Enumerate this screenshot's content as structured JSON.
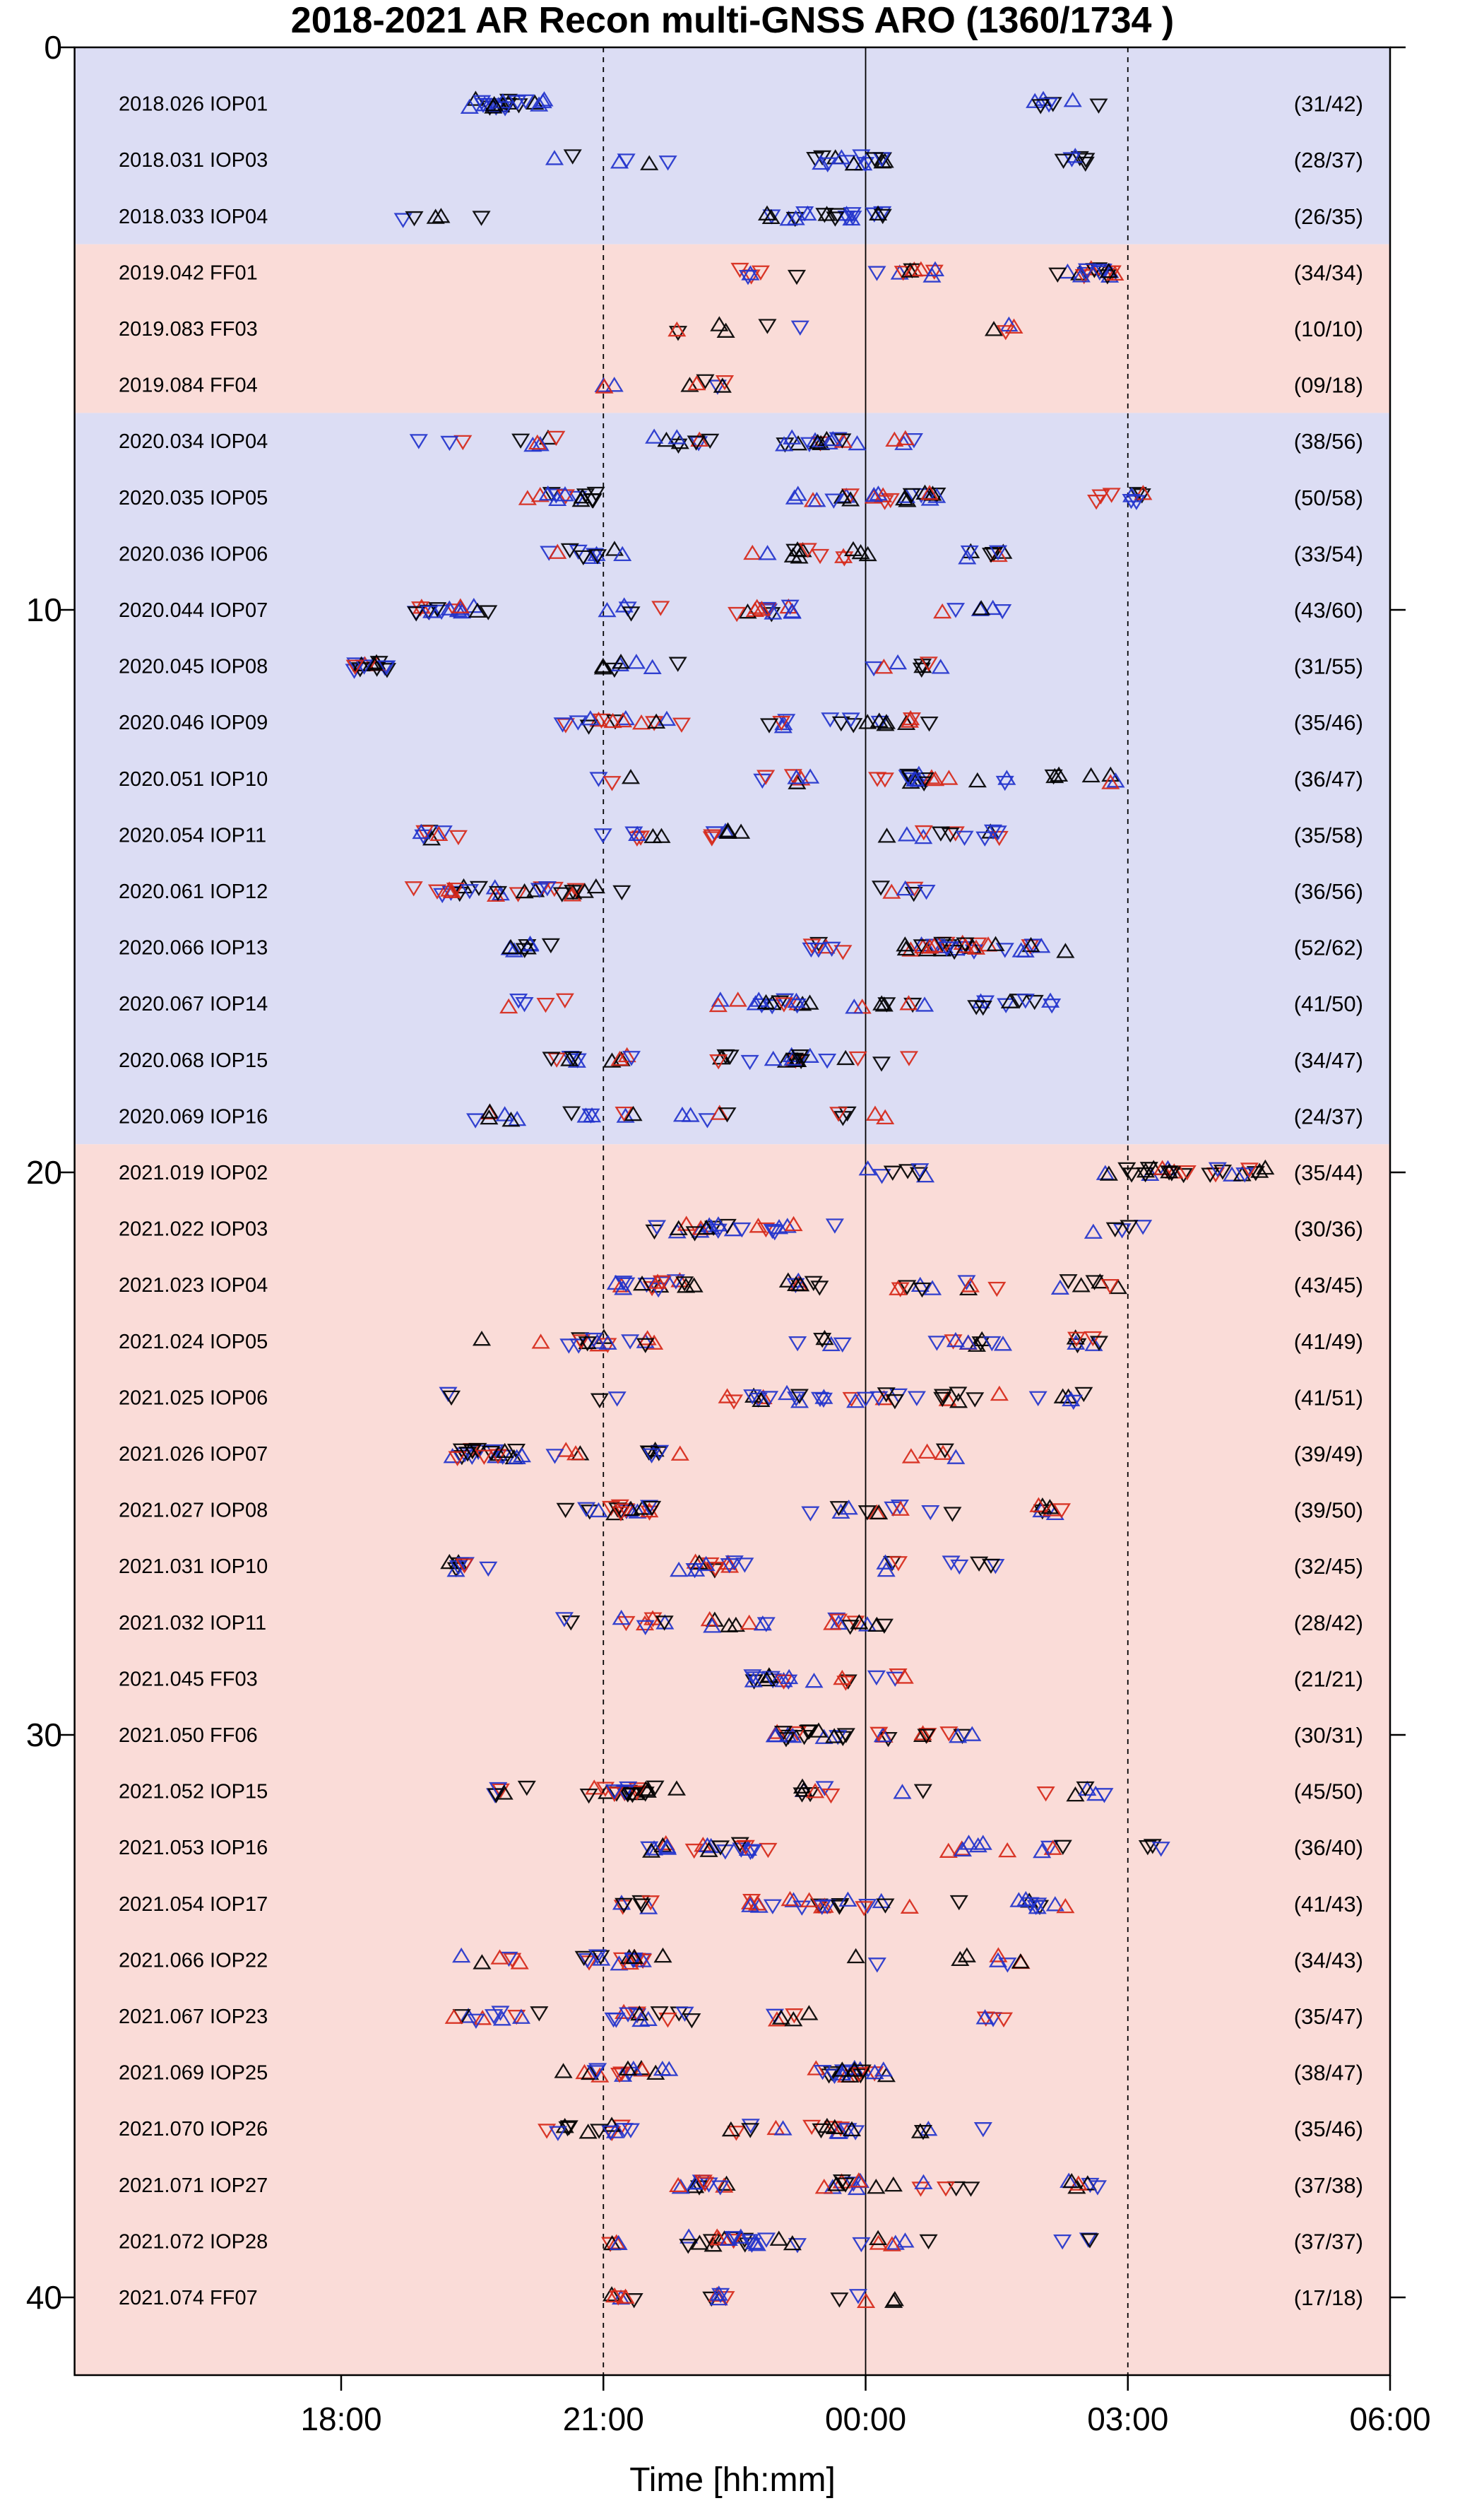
{
  "title": "2018-2021 AR Recon multi-GNSS ARO (1360/1734 )",
  "xlabel": "Time [hh:mm]",
  "chart_data": {
    "type": "scatter",
    "description": "Timeline of airborne GNSS radio occultation (ARO) soundings for each 2018-2021 AR Recon flight. Each row is one flight; open upward/downward triangles mark individual occultation events in time (colors = GNSS constellation: black, blue, red). Right-hand labels give (retrieved/total) occultation counts per flight. X axis spans 18:00 through 06:00 (next day) UTC; dashed guides at 21:00 and 03:00, solid line at 00:00.",
    "x_axis_range_hours": [
      14.9,
      30
    ],
    "x_ticks": [
      {
        "t": 18,
        "label": "18:00"
      },
      {
        "t": 21,
        "label": "21:00"
      },
      {
        "t": 24,
        "label": "00:00"
      },
      {
        "t": 27,
        "label": "03:00"
      },
      {
        "t": 30,
        "label": "06:00"
      }
    ],
    "y_ticks": [
      0,
      10,
      20,
      30,
      40
    ],
    "gridlines": [
      {
        "t": 21,
        "style": "dashed"
      },
      {
        "t": 24,
        "style": "solid"
      },
      {
        "t": 27,
        "style": "dashed"
      }
    ],
    "bands": [
      {
        "year": "2018",
        "v0": 0.0,
        "v1": 3.5,
        "color": "#dcddf4"
      },
      {
        "year": "2019",
        "v0": 3.5,
        "v1": 6.5,
        "color": "#fadcd8"
      },
      {
        "year": "2020",
        "v0": 6.5,
        "v1": 19.5,
        "color": "#dcddf4"
      },
      {
        "year": "2021",
        "v0": 19.5,
        "v1": 41.4,
        "color": "#fadcd8"
      }
    ],
    "marker_colors": {
      "black": "#000000",
      "blue": "#2233cc",
      "red": "#d62718"
    },
    "marker_shapes": [
      "triangle-up-open",
      "triangle-down-open"
    ],
    "rows": [
      {
        "i": 1,
        "label": "2018.026 IOP01",
        "count": "(31/42)",
        "n": 31,
        "t0": 19.4,
        "t1": 26.7,
        "palette": [
          "black",
          "blue"
        ]
      },
      {
        "i": 2,
        "label": "2018.031 IOP03",
        "count": "(28/37)",
        "n": 28,
        "t0": 19.3,
        "t1": 26.6,
        "palette": [
          "black",
          "blue"
        ]
      },
      {
        "i": 3,
        "label": "2018.033 IOP04",
        "count": "(26/35)",
        "n": 26,
        "t0": 18.7,
        "t1": 24.8,
        "palette": [
          "black",
          "blue"
        ]
      },
      {
        "i": 4,
        "label": "2019.042 FF01",
        "count": "(34/34)",
        "n": 34,
        "t0": 22.1,
        "t1": 26.9,
        "palette": [
          "black",
          "blue",
          "red"
        ]
      },
      {
        "i": 5,
        "label": "2019.083 FF03",
        "count": "(10/10)",
        "n": 10,
        "t0": 21.8,
        "t1": 25.8,
        "palette": [
          "black",
          "blue",
          "red"
        ]
      },
      {
        "i": 6,
        "label": "2019.084 FF04",
        "count": "(09/18)",
        "n": 9,
        "t0": 19.2,
        "t1": 22.5,
        "palette": [
          "black",
          "blue",
          "red"
        ]
      },
      {
        "i": 7,
        "label": "2020.034 IOP04",
        "count": "(38/56)",
        "n": 38,
        "t0": 18.7,
        "t1": 24.9,
        "palette": [
          "black",
          "blue",
          "red"
        ]
      },
      {
        "i": 8,
        "label": "2020.035 IOP05",
        "count": "(50/58)",
        "n": 50,
        "t0": 19.5,
        "t1": 27.2,
        "palette": [
          "black",
          "blue",
          "red"
        ]
      },
      {
        "i": 9,
        "label": "2020.036 IOP06",
        "count": "(33/54)",
        "n": 33,
        "t0": 18.5,
        "t1": 25.6,
        "palette": [
          "black",
          "blue",
          "red"
        ]
      },
      {
        "i": 10,
        "label": "2020.044 IOP07",
        "count": "(43/60)",
        "n": 43,
        "t0": 18.5,
        "t1": 25.8,
        "palette": [
          "black",
          "blue",
          "red"
        ]
      },
      {
        "i": 11,
        "label": "2020.045 IOP08",
        "count": "(31/55)",
        "n": 31,
        "t0": 18.1,
        "t1": 25.1,
        "palette": [
          "black",
          "blue",
          "red"
        ]
      },
      {
        "i": 12,
        "label": "2020.046 IOP09",
        "count": "(35/46)",
        "n": 35,
        "t0": 19.5,
        "t1": 25.7,
        "palette": [
          "black",
          "blue",
          "red"
        ]
      },
      {
        "i": 13,
        "label": "2020.051 IOP10",
        "count": "(36/47)",
        "n": 36,
        "t0": 19.1,
        "t1": 26.9,
        "palette": [
          "black",
          "blue",
          "red"
        ]
      },
      {
        "i": 14,
        "label": "2020.054 IOP11",
        "count": "(35/58)",
        "n": 35,
        "t0": 18.9,
        "t1": 25.7,
        "palette": [
          "black",
          "blue",
          "red"
        ]
      },
      {
        "i": 15,
        "label": "2020.061 IOP12",
        "count": "(36/56)",
        "n": 36,
        "t0": 18.4,
        "t1": 24.7,
        "palette": [
          "black",
          "blue",
          "red"
        ]
      },
      {
        "i": 16,
        "label": "2020.066 IOP13",
        "count": "(52/62)",
        "n": 52,
        "t0": 19.9,
        "t1": 27.1,
        "palette": [
          "black",
          "blue",
          "red"
        ]
      },
      {
        "i": 17,
        "label": "2020.067 IOP14",
        "count": "(41/50)",
        "n": 41,
        "t0": 19.7,
        "t1": 26.9,
        "palette": [
          "black",
          "blue",
          "red"
        ]
      },
      {
        "i": 18,
        "label": "2020.068 IOP15",
        "count": "(34/47)",
        "n": 34,
        "t0": 19.5,
        "t1": 26.6,
        "palette": [
          "black",
          "blue",
          "red"
        ]
      },
      {
        "i": 19,
        "label": "2020.069 IOP16",
        "count": "(24/37)",
        "n": 24,
        "t0": 19.4,
        "t1": 26.0,
        "palette": [
          "black",
          "blue",
          "red"
        ]
      },
      {
        "i": 20,
        "label": "2021.019 IOP02",
        "count": "(35/44)",
        "n": 35,
        "t0": 23.0,
        "t1": 28.6,
        "palette": [
          "black",
          "blue",
          "red"
        ]
      },
      {
        "i": 21,
        "label": "2021.022 IOP03",
        "count": "(30/36)",
        "n": 30,
        "t0": 21.5,
        "t1": 28.2,
        "palette": [
          "black",
          "blue",
          "red"
        ]
      },
      {
        "i": 22,
        "label": "2021.023 IOP04",
        "count": "(43/45)",
        "n": 43,
        "t0": 21.1,
        "t1": 27.2,
        "palette": [
          "black",
          "blue",
          "red"
        ]
      },
      {
        "i": 23,
        "label": "2021.024 IOP05",
        "count": "(41/49)",
        "n": 41,
        "t0": 19.5,
        "t1": 26.7,
        "palette": [
          "black",
          "blue",
          "red"
        ]
      },
      {
        "i": 24,
        "label": "2021.025 IOP06",
        "count": "(41/51)",
        "n": 41,
        "t0": 19.2,
        "t1": 26.6,
        "palette": [
          "black",
          "blue",
          "red"
        ]
      },
      {
        "i": 25,
        "label": "2021.026 IOP07",
        "count": "(39/49)",
        "n": 39,
        "t0": 19.1,
        "t1": 26.3,
        "palette": [
          "black",
          "blue",
          "red"
        ]
      },
      {
        "i": 26,
        "label": "2021.027 IOP08",
        "count": "(39/50)",
        "n": 39,
        "t0": 19.5,
        "t1": 26.3,
        "palette": [
          "black",
          "blue",
          "red"
        ]
      },
      {
        "i": 27,
        "label": "2021.031 IOP10",
        "count": "(32/45)",
        "n": 32,
        "t0": 19.2,
        "t1": 25.5,
        "palette": [
          "black",
          "blue",
          "red"
        ]
      },
      {
        "i": 28,
        "label": "2021.032 IOP11",
        "count": "(28/42)",
        "n": 28,
        "t0": 19.2,
        "t1": 25.5,
        "palette": [
          "black",
          "blue",
          "red"
        ]
      },
      {
        "i": 29,
        "label": "2021.045 FF03",
        "count": "(21/21)",
        "n": 21,
        "t0": 22.7,
        "t1": 26.6,
        "palette": [
          "black",
          "blue",
          "red"
        ]
      },
      {
        "i": 30,
        "label": "2021.050 FF06",
        "count": "(30/31)",
        "n": 30,
        "t0": 22.9,
        "t1": 27.4,
        "palette": [
          "black",
          "blue",
          "red"
        ]
      },
      {
        "i": 31,
        "label": "2021.052 IOP15",
        "count": "(45/50)",
        "n": 45,
        "t0": 19.7,
        "t1": 27.2,
        "palette": [
          "black",
          "blue",
          "red"
        ]
      },
      {
        "i": 32,
        "label": "2021.053 IOP16",
        "count": "(36/40)",
        "n": 36,
        "t0": 21.5,
        "t1": 27.7,
        "palette": [
          "black",
          "blue",
          "red"
        ]
      },
      {
        "i": 33,
        "label": "2021.054 IOP17",
        "count": "(41/43)",
        "n": 41,
        "t0": 21.1,
        "t1": 26.9,
        "palette": [
          "black",
          "blue",
          "red"
        ]
      },
      {
        "i": 34,
        "label": "2021.066 IOP22",
        "count": "(34/43)",
        "n": 34,
        "t0": 19.3,
        "t1": 25.8,
        "palette": [
          "black",
          "blue",
          "red"
        ]
      },
      {
        "i": 35,
        "label": "2021.067 IOP23",
        "count": "(35/47)",
        "n": 35,
        "t0": 18.8,
        "t1": 25.6,
        "palette": [
          "black",
          "blue",
          "red"
        ]
      },
      {
        "i": 36,
        "label": "2021.069 IOP25",
        "count": "(38/47)",
        "n": 38,
        "t0": 19.5,
        "t1": 25.8,
        "palette": [
          "black",
          "blue",
          "red"
        ]
      },
      {
        "i": 37,
        "label": "2021.070 IOP26",
        "count": "(35/46)",
        "n": 35,
        "t0": 19.0,
        "t1": 25.8,
        "palette": [
          "black",
          "blue",
          "red"
        ]
      },
      {
        "i": 38,
        "label": "2021.071 IOP27",
        "count": "(37/38)",
        "n": 37,
        "t0": 20.2,
        "t1": 26.9,
        "palette": [
          "black",
          "blue",
          "red"
        ]
      },
      {
        "i": 39,
        "label": "2021.072 IOP28",
        "count": "(37/37)",
        "n": 37,
        "t0": 21.0,
        "t1": 26.6,
        "palette": [
          "black",
          "blue",
          "red"
        ]
      },
      {
        "i": 40,
        "label": "2021.074 FF07",
        "count": "(17/18)",
        "n": 17,
        "t0": 20.8,
        "t1": 25.0,
        "palette": [
          "black",
          "blue",
          "red"
        ]
      }
    ]
  }
}
